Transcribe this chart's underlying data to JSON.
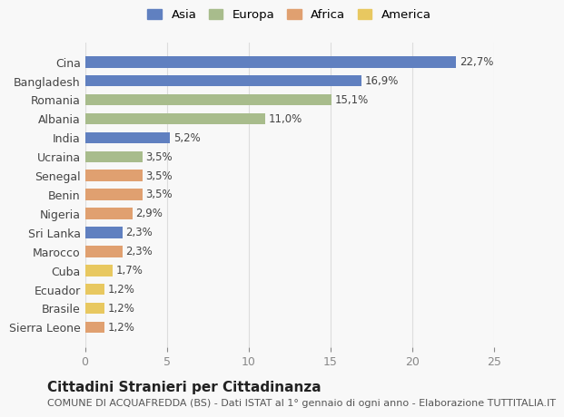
{
  "countries": [
    "Cina",
    "Bangladesh",
    "Romania",
    "Albania",
    "India",
    "Ucraina",
    "Senegal",
    "Benin",
    "Nigeria",
    "Sri Lanka",
    "Marocco",
    "Cuba",
    "Ecuador",
    "Brasile",
    "Sierra Leone"
  ],
  "values": [
    22.7,
    16.9,
    15.1,
    11.0,
    5.2,
    3.5,
    3.5,
    3.5,
    2.9,
    2.3,
    2.3,
    1.7,
    1.2,
    1.2,
    1.2
  ],
  "labels": [
    "22,7%",
    "16,9%",
    "15,1%",
    "11,0%",
    "5,2%",
    "3,5%",
    "3,5%",
    "3,5%",
    "2,9%",
    "2,3%",
    "2,3%",
    "1,7%",
    "1,2%",
    "1,2%",
    "1,2%"
  ],
  "colors": [
    "#6080c0",
    "#6080c0",
    "#a8bc8c",
    "#a8bc8c",
    "#6080c0",
    "#a8bc8c",
    "#e0a070",
    "#e0a070",
    "#e0a070",
    "#6080c0",
    "#e0a070",
    "#e8c860",
    "#e8c860",
    "#e8c860",
    "#e0a070"
  ],
  "legend_labels": [
    "Asia",
    "Europa",
    "Africa",
    "America"
  ],
  "legend_colors": [
    "#6080c0",
    "#a8bc8c",
    "#e0a070",
    "#e8c860"
  ],
  "title": "Cittadini Stranieri per Cittadinanza",
  "subtitle": "COMUNE DI ACQUAFREDDA (BS) - Dati ISTAT al 1° gennaio di ogni anno - Elaborazione TUTTITALIA.IT",
  "xlim": [
    0,
    25
  ],
  "xticks": [
    0,
    5,
    10,
    15,
    20,
    25
  ],
  "bg_color": "#f8f8f8",
  "bar_height": 0.6,
  "label_fontsize": 8.5,
  "tick_fontsize": 9,
  "title_fontsize": 11,
  "subtitle_fontsize": 8
}
